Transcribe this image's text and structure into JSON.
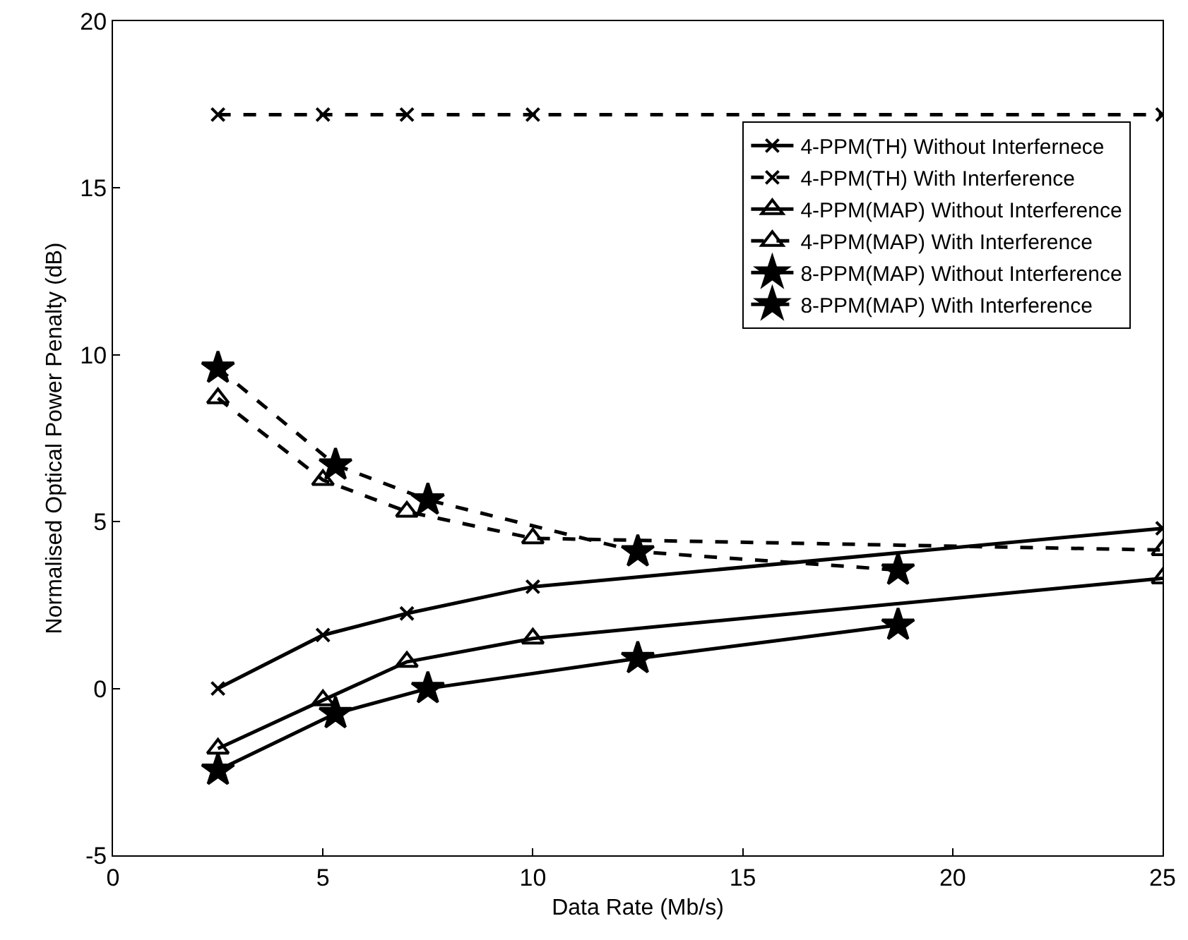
{
  "chart_data": {
    "type": "line",
    "xlabel": "Data Rate (Mb/s)",
    "ylabel": "Normalised Optical Power Penalty (dB)",
    "xlim": [
      0,
      25
    ],
    "xticks": [
      0,
      5,
      10,
      15,
      20,
      25
    ],
    "ylim": [
      -5,
      20
    ],
    "yticks": [
      -5,
      0,
      5,
      10,
      15,
      20
    ],
    "grid": false,
    "legend": "top right",
    "series": [
      {
        "name": "4-PPM(TH) Without Interfernece",
        "color": "#000000",
        "marker": "cross",
        "line_style": "solid",
        "x": [
          2.5,
          5,
          7,
          10,
          25
        ],
        "values": [
          0,
          1.6,
          2.25,
          3.05,
          4.8
        ]
      },
      {
        "name": "4-PPM(TH) With Interference",
        "color": "#000000",
        "marker": "cross",
        "line_style": "dashed",
        "x": [
          2.5,
          5,
          7,
          10,
          25
        ],
        "values": [
          17.2,
          17.2,
          17.2,
          17.2,
          17.2
        ]
      },
      {
        "name": "4-PPM(MAP) Without Interference",
        "color": "#000000",
        "marker": "triangle",
        "line_style": "solid",
        "x": [
          2.5,
          5,
          7,
          10,
          25
        ],
        "values": [
          -1.8,
          -0.35,
          0.8,
          1.5,
          3.3
        ]
      },
      {
        "name": "4-PPM(MAP) With Interference",
        "color": "#000000",
        "marker": "triangle",
        "line_style": "dashed",
        "x": [
          2.5,
          5,
          7,
          10,
          25
        ],
        "values": [
          8.7,
          6.25,
          5.3,
          4.5,
          4.15
        ]
      },
      {
        "name": "8-PPM(MAP) Without Interference",
        "color": "#000000",
        "marker": "star",
        "line_style": "solid",
        "x": [
          2.5,
          5.3,
          7.5,
          12.5,
          18.7
        ],
        "values": [
          -2.45,
          -0.75,
          0,
          0.9,
          1.9
        ]
      },
      {
        "name": "8-PPM(MAP) With Interference",
        "color": "#000000",
        "marker": "star",
        "line_style": "dashed",
        "x": [
          2.5,
          5.3,
          7.5,
          12.5,
          18.7
        ],
        "values": [
          9.6,
          6.7,
          5.65,
          4.1,
          3.55
        ]
      }
    ]
  }
}
